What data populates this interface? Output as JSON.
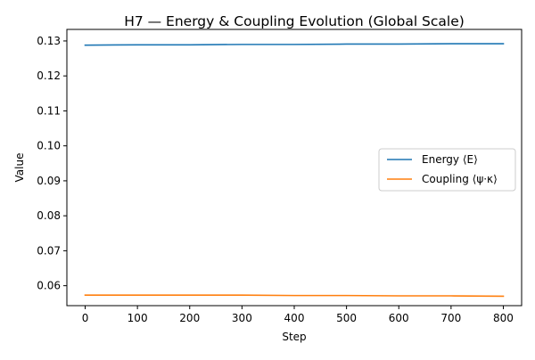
{
  "chart_data": {
    "type": "line",
    "title": "H7 — Energy & Coupling Evolution (Global Scale)",
    "xlabel": "Step",
    "ylabel": "Value",
    "xlim": [
      -35,
      835
    ],
    "ylim": [
      0.0543,
      0.1333
    ],
    "x_ticks": [
      0,
      100,
      200,
      300,
      400,
      500,
      600,
      700,
      800
    ],
    "x_tick_labels": [
      "0",
      "100",
      "200",
      "300",
      "400",
      "500",
      "600",
      "700",
      "800"
    ],
    "y_ticks": [
      0.06,
      0.07,
      0.08,
      0.09,
      0.1,
      0.11,
      0.12,
      0.13
    ],
    "y_tick_labels": [
      "0.06",
      "0.07",
      "0.08",
      "0.09",
      "0.10",
      "0.11",
      "0.12",
      "0.13"
    ],
    "grid": false,
    "legend_position": "center-right",
    "series": [
      {
        "name": "Energy ⟨E⟩",
        "color": "#1f77b4",
        "x": [
          0,
          100,
          200,
          300,
          400,
          500,
          600,
          700,
          800
        ],
        "values": [
          0.1288,
          0.1289,
          0.1289,
          0.129,
          0.129,
          0.1291,
          0.1291,
          0.1292,
          0.1292
        ]
      },
      {
        "name": "Coupling ⟨ψ·κ⟩",
        "color": "#ff7f0e",
        "x": [
          0,
          100,
          200,
          300,
          400,
          500,
          600,
          700,
          800
        ],
        "values": [
          0.0573,
          0.0573,
          0.0573,
          0.0573,
          0.0572,
          0.0572,
          0.0571,
          0.0571,
          0.057
        ]
      }
    ]
  }
}
